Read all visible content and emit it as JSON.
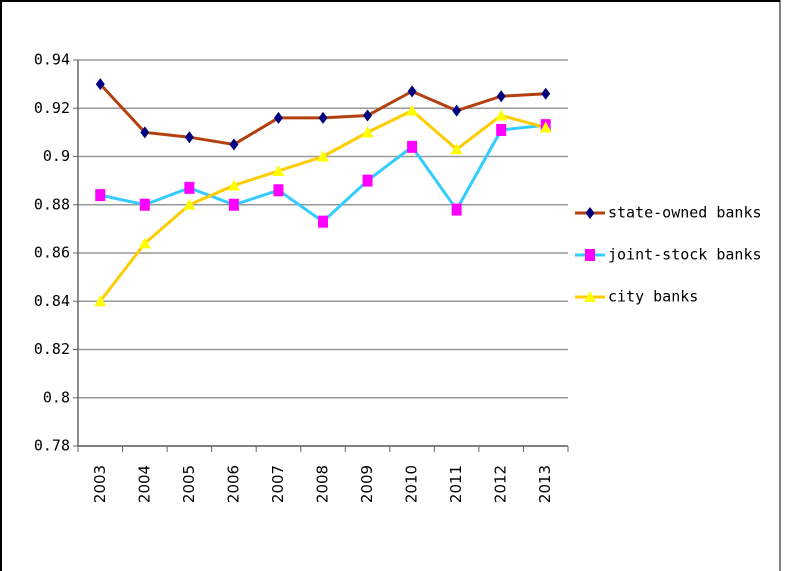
{
  "chart_data": {
    "type": "line",
    "categories": [
      "2003",
      "2004",
      "2005",
      "2006",
      "2007",
      "2008",
      "2009",
      "2010",
      "2011",
      "2012",
      "2013"
    ],
    "series": [
      {
        "name": "state-owned banks",
        "color": "#b3400f",
        "marker": "diamond",
        "marker_color": "#000080",
        "values": [
          0.93,
          0.91,
          0.908,
          0.905,
          0.916,
          0.916,
          0.917,
          0.927,
          0.919,
          0.925,
          0.926
        ]
      },
      {
        "name": "joint-stock banks",
        "color": "#33ccff",
        "marker": "square",
        "marker_color": "#ff00ff",
        "values": [
          0.884,
          0.88,
          0.887,
          0.88,
          0.886,
          0.873,
          0.89,
          0.904,
          0.878,
          0.911,
          0.913
        ]
      },
      {
        "name": "city banks",
        "color": "#ffcc00",
        "marker": "triangle",
        "marker_color": "#ffff00",
        "values": [
          0.84,
          0.864,
          0.88,
          0.888,
          0.894,
          0.9,
          0.91,
          0.919,
          0.903,
          0.917,
          0.912
        ]
      }
    ],
    "ylim": [
      0.78,
      0.94
    ],
    "yticks": [
      0.78,
      0.8,
      0.82,
      0.84,
      0.86,
      0.88,
      0.9,
      0.92,
      0.94
    ],
    "grid": true,
    "legend": "right"
  }
}
